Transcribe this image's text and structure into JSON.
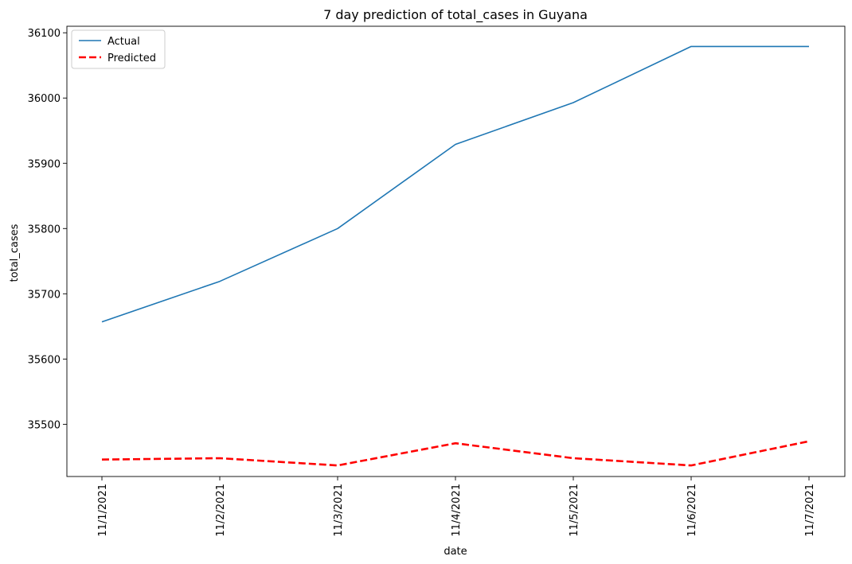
{
  "chart_data": {
    "type": "line",
    "title": "7 day prediction of total_cases in Guyana",
    "xlabel": "date",
    "ylabel": "total_cases",
    "categories": [
      "11/1/2021",
      "11/2/2021",
      "11/3/2021",
      "11/4/2021",
      "11/5/2021",
      "11/6/2021",
      "11/7/2021"
    ],
    "y_ticks": [
      35500,
      35600,
      35700,
      35800,
      35900,
      36000,
      36100
    ],
    "ylim": [
      35420,
      36110
    ],
    "grid": false,
    "legend_position": "top-left",
    "series": [
      {
        "name": "Actual",
        "color": "#1f77b4",
        "style": "solid",
        "values": [
          35657,
          35719,
          35800,
          35929,
          35993,
          36079,
          36079
        ]
      },
      {
        "name": "Predicted",
        "color": "#ff0000",
        "style": "dashed",
        "values": [
          35446,
          35448,
          35437,
          35471,
          35448,
          35437,
          35474
        ]
      }
    ]
  }
}
